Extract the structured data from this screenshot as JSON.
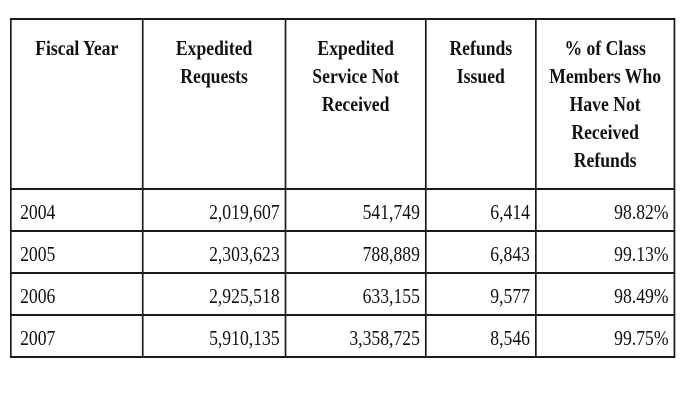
{
  "table": {
    "headers": [
      [
        "Fiscal Year"
      ],
      [
        "Expedited",
        "Requests"
      ],
      [
        "Expedited",
        "Service Not",
        "Received"
      ],
      [
        "Refunds",
        "Issued"
      ],
      [
        "% of Class",
        "Members Who",
        "Have Not",
        "Received",
        "Refunds"
      ]
    ],
    "rows": [
      {
        "fiscal_year": "2004",
        "expedited_requests": "2,019,607",
        "service_not_received": "541,749",
        "refunds_issued": "6,414",
        "pct_not_received": "98.82%"
      },
      {
        "fiscal_year": "2005",
        "expedited_requests": "2,303,623",
        "service_not_received": "788,889",
        "refunds_issued": "6,843",
        "pct_not_received": "99.13%"
      },
      {
        "fiscal_year": "2006",
        "expedited_requests": "2,925,518",
        "service_not_received": "633,155",
        "refunds_issued": "9,577",
        "pct_not_received": "98.49%"
      },
      {
        "fiscal_year": "2007",
        "expedited_requests": "5,910,135",
        "service_not_received": "3,358,725",
        "refunds_issued": "8,546",
        "pct_not_received": "99.75%"
      }
    ]
  }
}
